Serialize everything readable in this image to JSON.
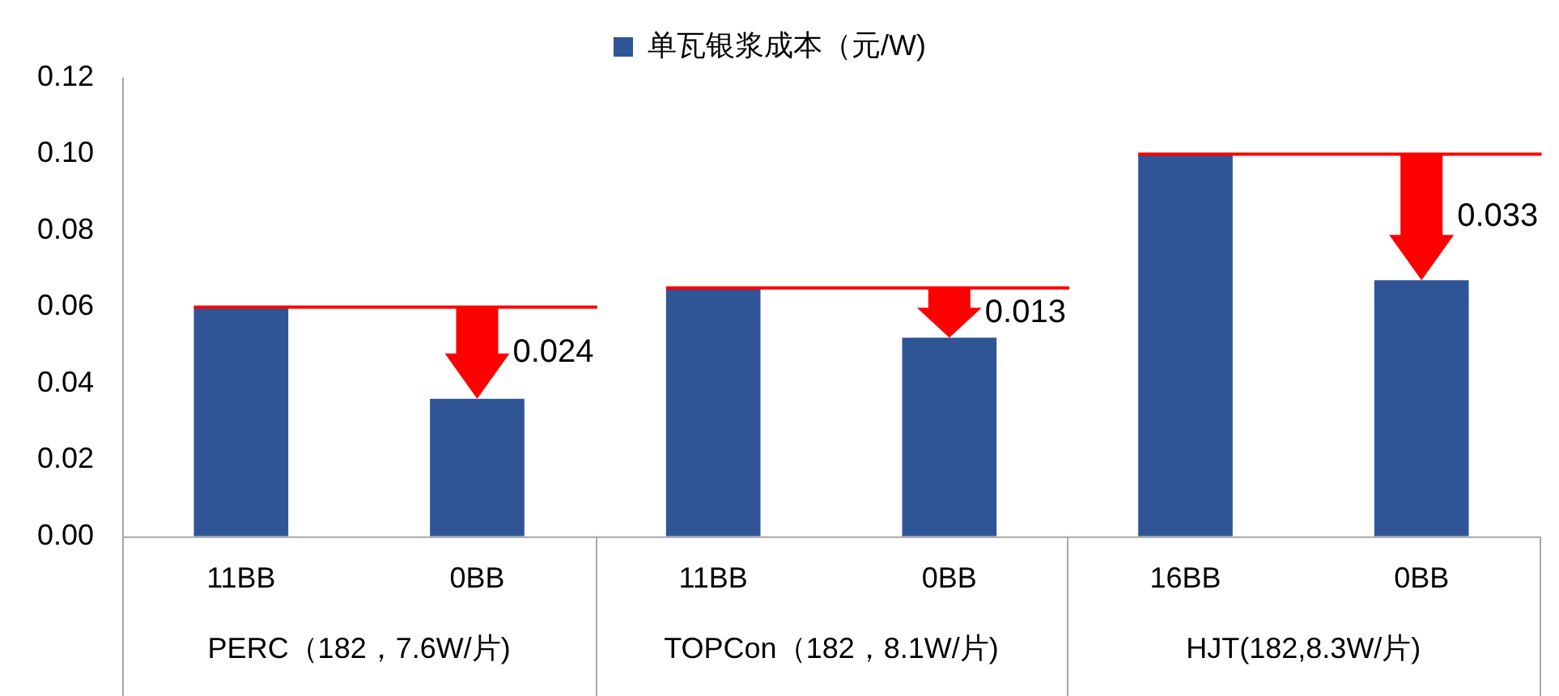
{
  "chart_data": {
    "type": "bar",
    "categories": [
      "11BB",
      "0BB",
      "11BB",
      "0BB",
      "16BB",
      "0BB"
    ],
    "series": [
      {
        "name": "单瓦银浆成本（元/W)",
        "color": "#2f5597",
        "values": [
          0.06,
          0.036,
          0.065,
          0.052,
          0.1,
          0.067
        ]
      }
    ],
    "ylim": [
      0,
      0.12
    ],
    "yticks": [
      {
        "value": 0,
        "label": "0.00"
      },
      {
        "value": 0.02,
        "label": "0.02"
      },
      {
        "value": 0.04,
        "label": "0.04"
      },
      {
        "value": 0.06,
        "label": "0.06"
      },
      {
        "value": 0.08,
        "label": "0.08"
      },
      {
        "value": 0.1,
        "label": "0.10"
      },
      {
        "value": 0.12,
        "label": "0.12"
      }
    ],
    "grid": false,
    "legend": "top",
    "annotations": [
      "PERC（182，7.6W/片)",
      "TOPCon（182，8.1W/片)",
      "HJT(182,8.3W/片)",
      "0.024",
      "0.013",
      "0.033"
    ],
    "ref_lines": [
      {
        "axis": "y",
        "value": 0.06,
        "color": "#ff0000"
      },
      {
        "axis": "y",
        "value": 0.065,
        "color": "#ff0000"
      },
      {
        "axis": "y",
        "value": 0.1,
        "color": "#ff0000"
      }
    ]
  }
}
